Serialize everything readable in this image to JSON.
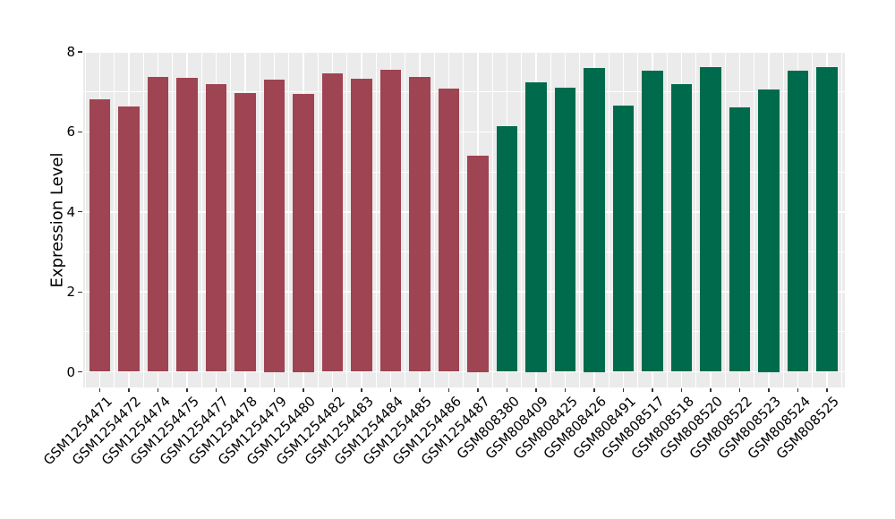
{
  "chart_data": {
    "type": "bar",
    "title": "",
    "xlabel": "",
    "ylabel": "Expression Level",
    "ylim": [
      0,
      8
    ],
    "yticks": [
      0,
      2,
      4,
      6,
      8
    ],
    "grid": "on",
    "legend": "none",
    "panel_background": "#EBEBEB",
    "gridline_color": "#FFFFFF",
    "tick_color": "#333333",
    "group_colors": {
      "group1": "#9E4452",
      "group2": "#006B4C"
    },
    "categories": [
      "GSM1254471",
      "GSM1254472",
      "GSM1254474",
      "GSM1254475",
      "GSM1254477",
      "GSM1254478",
      "GSM1254479",
      "GSM1254480",
      "GSM1254482",
      "GSM1254483",
      "GSM1254484",
      "GSM1254485",
      "GSM1254486",
      "GSM1254487",
      "GSM808380",
      "GSM808409",
      "GSM808425",
      "GSM808426",
      "GSM808491",
      "GSM808517",
      "GSM808518",
      "GSM808520",
      "GSM808522",
      "GSM808523",
      "GSM808524",
      "GSM808525"
    ],
    "values": [
      6.82,
      6.63,
      7.38,
      7.36,
      7.19,
      6.97,
      7.3,
      6.95,
      7.46,
      7.32,
      7.56,
      7.38,
      7.08,
      5.4,
      6.14,
      7.25,
      7.11,
      7.6,
      6.66,
      7.54,
      7.19,
      7.63,
      6.61,
      7.05,
      7.52,
      7.63
    ],
    "bar_groups": [
      "group1",
      "group1",
      "group1",
      "group1",
      "group1",
      "group1",
      "group1",
      "group1",
      "group1",
      "group1",
      "group1",
      "group1",
      "group1",
      "group1",
      "group2",
      "group2",
      "group2",
      "group2",
      "group2",
      "group2",
      "group2",
      "group2",
      "group2",
      "group2",
      "group2",
      "group2"
    ]
  }
}
